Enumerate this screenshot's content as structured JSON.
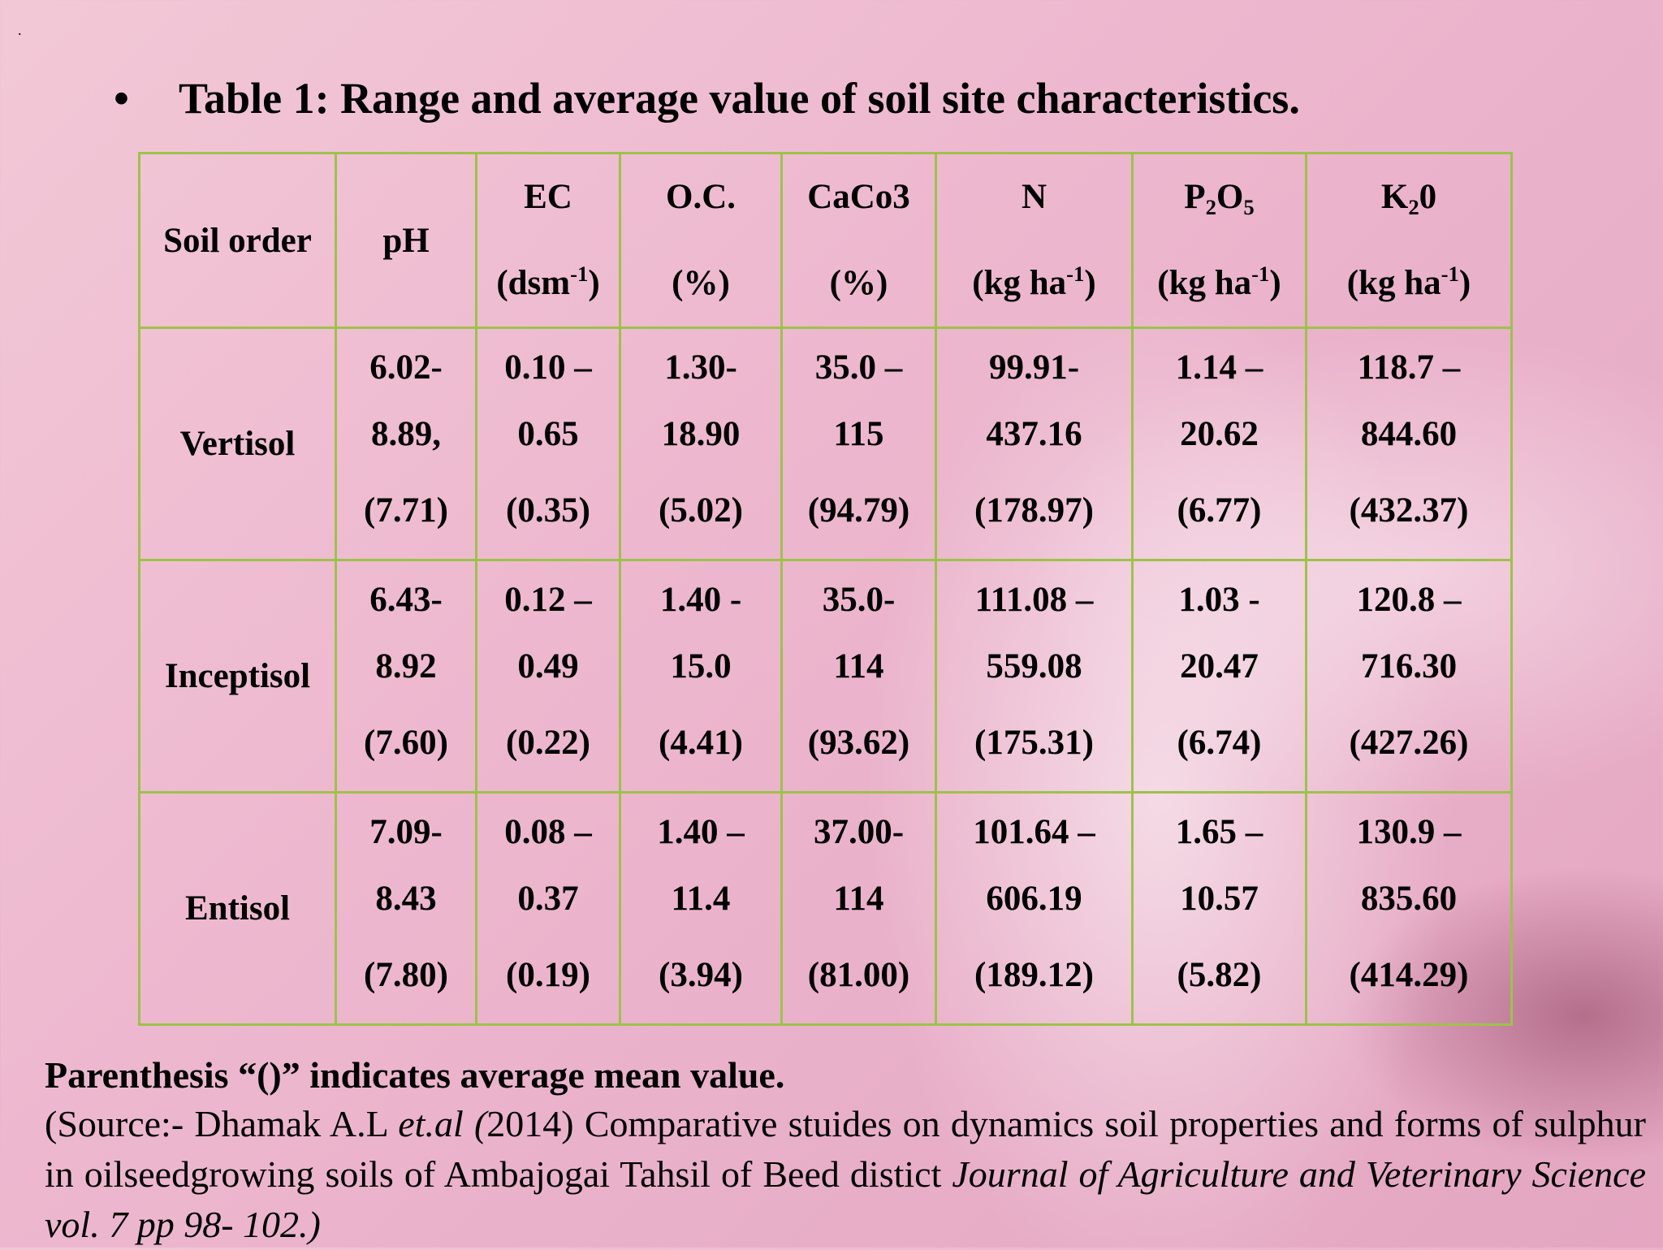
{
  "slide": {
    "marker": ".",
    "bullet": "•",
    "title": "Table 1: Range and average value of soil site characteristics."
  },
  "table": {
    "headers": {
      "soil_order": "Soil order",
      "ph": "pH",
      "ec": {
        "name": "EC",
        "unit_pre": "(dsm",
        "unit_sup": "-1",
        "unit_post": ")"
      },
      "oc": {
        "name": "O.C.",
        "unit": "(%)"
      },
      "caco3": {
        "name": "CaCo3",
        "unit": "(%)"
      },
      "n": {
        "name": "N",
        "unit_pre": "(kg ha",
        "unit_sup": "-1",
        "unit_post": ")"
      },
      "p2o5": {
        "name_a": "P",
        "name_sub1": "2",
        "name_b": "O",
        "name_sub2": "5",
        "unit_pre": "(kg ha",
        "unit_sup": "-1",
        "unit_post": ")"
      },
      "k2o": {
        "name_a": "K",
        "name_sub": "2",
        "name_b": "0",
        "unit_pre": "(kg ha",
        "unit_sup": "-1",
        "unit_post": ")"
      }
    },
    "rows": [
      {
        "order": "Vertisol",
        "ph": [
          "6.02-",
          "8.89,",
          "(7.71)"
        ],
        "ec": [
          "0.10 –",
          "0.65",
          "(0.35)"
        ],
        "oc": [
          "1.30-",
          "18.90",
          "(5.02)"
        ],
        "caco3": [
          "35.0 –",
          "115",
          "(94.79)"
        ],
        "n": [
          "99.91-",
          "437.16",
          "(178.97)"
        ],
        "p2o5": [
          "1.14 –",
          "20.62",
          "(6.77)"
        ],
        "k2o": [
          "118.7 –",
          "844.60",
          "(432.37)"
        ]
      },
      {
        "order": "Inceptisol",
        "ph": [
          "6.43-",
          "8.92",
          "(7.60)"
        ],
        "ec": [
          "0.12 –",
          "0.49",
          "(0.22)"
        ],
        "oc": [
          "1.40 -",
          "15.0",
          "(4.41)"
        ],
        "caco3": [
          "35.0-",
          "114",
          "(93.62)"
        ],
        "n": [
          "111.08 –",
          "559.08",
          "(175.31)"
        ],
        "p2o5": [
          "1.03 -",
          "20.47",
          "(6.74)"
        ],
        "k2o": [
          "120.8 –",
          "716.30",
          "(427.26)"
        ]
      },
      {
        "order": "Entisol",
        "ph": [
          "7.09-",
          "8.43",
          "(7.80)"
        ],
        "ec": [
          "0.08 –",
          "0.37",
          "(0.19)"
        ],
        "oc": [
          "1.40 –",
          "11.4",
          "(3.94)"
        ],
        "caco3": [
          "37.00-",
          "114",
          "(81.00)"
        ],
        "n": [
          "101.64 –",
          "606.19",
          "(189.12)"
        ],
        "p2o5": [
          "1.65 –",
          "10.57",
          "(5.82)"
        ],
        "k2o": [
          "130.9 –",
          "835.60",
          "(414.29)"
        ]
      }
    ]
  },
  "footnote": {
    "note": "Parenthesis “()” indicates average mean value.",
    "source_a": "(Source:- Dhamak A.L ",
    "source_etal": "et.al (",
    "source_b": "2014) Comparative stuides on dynamics soil properties and forms of sulphur in oilseedgrowing soils of Ambajogai Tahsil of Beed distict ",
    "source_journal": "Journal of Agriculture and Veterinary Science vol. 7 pp 98- 102.)"
  }
}
